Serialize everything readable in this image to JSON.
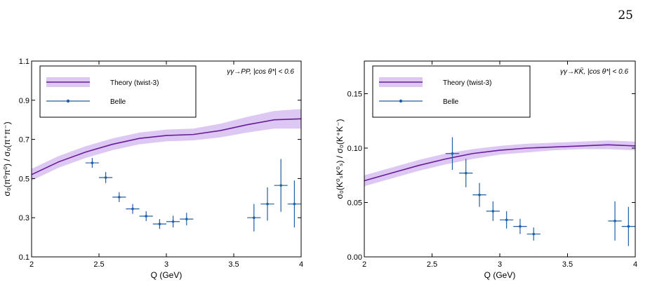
{
  "page": {
    "number": "25"
  },
  "legend": {
    "theory": "Theory (twist-3)",
    "belle": "Belle"
  },
  "colors": {
    "theory_line": "#6a1b9a",
    "theory_band": "#dcc8f2",
    "belle": "#1f5fa8"
  },
  "chart_data": [
    {
      "type": "line",
      "xlabel": "Q (GeV)",
      "ylabel": "σ₀(π⁰π⁰) / σ₀(π⁺π⁻)",
      "annotation": "γγ→PP,  |cos θ*| < 0.6",
      "xlim": [
        2,
        4
      ],
      "ylim": [
        0.1,
        1.1
      ],
      "xticks": [
        "2",
        "2.5",
        "3",
        "3.5",
        "4"
      ],
      "yticks": [
        "0.1",
        "0.3",
        "0.5",
        "0.7",
        "0.9",
        "1.1"
      ],
      "legend_position": "top-left",
      "series": [
        {
          "name": "Theory (twist-3)",
          "kind": "curve_with_band",
          "x": [
            2.0,
            2.2,
            2.4,
            2.6,
            2.8,
            3.0,
            3.2,
            3.4,
            3.6,
            3.8,
            4.0
          ],
          "y": [
            0.52,
            0.585,
            0.635,
            0.675,
            0.705,
            0.72,
            0.725,
            0.745,
            0.775,
            0.8,
            0.805
          ],
          "band_lower": [
            0.49,
            0.555,
            0.605,
            0.645,
            0.675,
            0.69,
            0.695,
            0.71,
            0.735,
            0.755,
            0.755
          ],
          "band_upper": [
            0.55,
            0.615,
            0.665,
            0.705,
            0.735,
            0.75,
            0.755,
            0.78,
            0.815,
            0.845,
            0.855
          ]
        },
        {
          "name": "Belle",
          "kind": "points_with_errors",
          "x": [
            2.45,
            2.55,
            2.65,
            2.75,
            2.85,
            2.95,
            3.05,
            3.15,
            3.65,
            3.75,
            3.85,
            3.95
          ],
          "y": [
            0.58,
            0.505,
            0.405,
            0.345,
            0.308,
            0.268,
            0.28,
            0.293,
            0.3,
            0.37,
            0.465,
            0.37
          ],
          "yerr": [
            0.025,
            0.028,
            0.025,
            0.025,
            0.025,
            0.025,
            0.03,
            0.032,
            0.07,
            0.085,
            0.135,
            0.12
          ],
          "xerr": 0.05
        }
      ]
    },
    {
      "type": "line",
      "xlabel": "Q (GeV)",
      "ylabel": "σ₀(K⁰ₛK⁰ₛ) / σ₀(K⁺K⁻)",
      "annotation": "γγ→KK̄,  |cos θ*| < 0.6",
      "xlim": [
        2,
        4
      ],
      "ylim": [
        0,
        0.18
      ],
      "xticks": [
        "2",
        "2.5",
        "3",
        "3.5",
        "4"
      ],
      "yticks": [
        "0.00",
        "0.05",
        "0.10",
        "0.15"
      ],
      "legend_position": "top-left",
      "series": [
        {
          "name": "Theory (twist-3)",
          "kind": "curve_with_band",
          "x": [
            2.0,
            2.2,
            2.4,
            2.6,
            2.8,
            3.0,
            3.2,
            3.4,
            3.6,
            3.8,
            4.0
          ],
          "y": [
            0.07,
            0.077,
            0.084,
            0.09,
            0.095,
            0.098,
            0.1,
            0.101,
            0.102,
            0.103,
            0.102
          ],
          "band_lower": [
            0.065,
            0.072,
            0.079,
            0.085,
            0.09,
            0.094,
            0.096,
            0.098,
            0.099,
            0.099,
            0.098
          ],
          "band_upper": [
            0.075,
            0.082,
            0.089,
            0.095,
            0.099,
            0.102,
            0.104,
            0.105,
            0.106,
            0.107,
            0.106
          ]
        },
        {
          "name": "Belle",
          "kind": "points_with_errors",
          "x": [
            2.65,
            2.75,
            2.85,
            2.95,
            3.05,
            3.15,
            3.25,
            3.85,
            3.95
          ],
          "y": [
            0.095,
            0.077,
            0.057,
            0.042,
            0.034,
            0.028,
            0.021,
            0.033,
            0.028
          ],
          "yerr": [
            0.015,
            0.013,
            0.011,
            0.009,
            0.008,
            0.007,
            0.006,
            0.018,
            0.018
          ],
          "xerr": 0.05
        }
      ]
    }
  ]
}
